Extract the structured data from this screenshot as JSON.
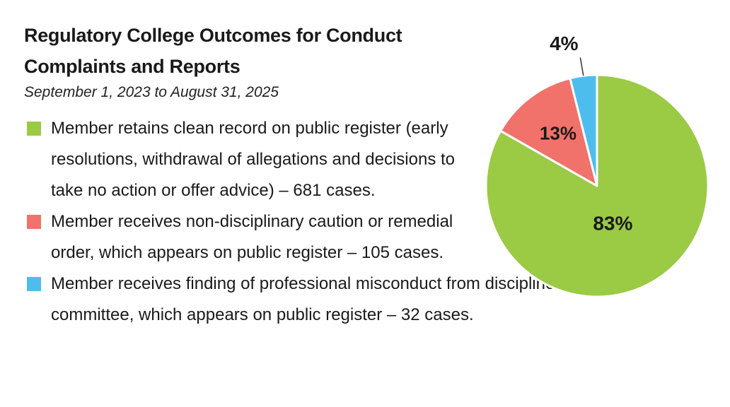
{
  "title": "Regulatory College Outcomes for Conduct Complaints and Reports",
  "subtitle": "September 1, 2023 to August 31, 2025",
  "legend": [
    {
      "text": "Member retains clean record on public register (early resolutions, withdrawal of allegations and decisions to take no action or offer advice) – 681 cases.",
      "color": "#9bca45"
    },
    {
      "text": "Member receives non-disciplinary caution or remedial order, which appears on public register – 105 cases.",
      "color": "#f1726a"
    },
    {
      "text": "Member receives finding of professional misconduct from discipline committee, which appears on public register – 32 cases.",
      "color": "#4dbdee"
    }
  ],
  "chart_data": {
    "type": "pie",
    "title": "Regulatory College Outcomes for Conduct Complaints and Reports",
    "subtitle": "September 1, 2023 to August 31, 2025",
    "slices": [
      {
        "label": "Member retains clean record on public register",
        "value": 681,
        "percent_label": "83%",
        "color": "#9bca45"
      },
      {
        "label": "Member receives non-disciplinary caution or remedial order",
        "value": 105,
        "percent_label": "13%",
        "color": "#f1726a"
      },
      {
        "label": "Member receives finding of professional misconduct",
        "value": 32,
        "percent_label": "4%",
        "color": "#4dbdee"
      }
    ],
    "start_angle_deg": 0,
    "direction": "clockwise",
    "legend_placement": "left"
  }
}
